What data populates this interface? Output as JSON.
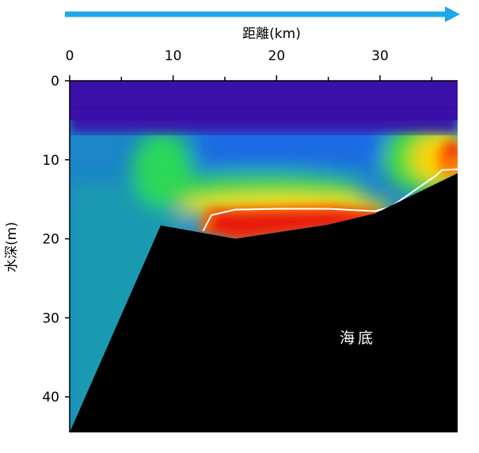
{
  "chart_data": {
    "type": "heatmap",
    "title": "",
    "xlabel": "距離(km)",
    "ylabel": "水深(m)",
    "xlim": [
      0,
      37.5
    ],
    "ylim": [
      44.5,
      0
    ],
    "x_ticks": [
      0,
      10,
      20,
      30
    ],
    "y_ticks": [
      0,
      10,
      20,
      30,
      40
    ],
    "grid": false,
    "direction_arrow": "right",
    "colors": {
      "arrow": "#1ea8ea",
      "surface": "#3a10a8",
      "seafloor_fill": "#000000",
      "contour": "#ffffff",
      "colormap": [
        "#3a10a8",
        "#1c6ae4",
        "#19a0a8",
        "#2ad85a",
        "#8fe81c",
        "#ffe400",
        "#ff6a00",
        "#e81c10"
      ]
    },
    "seafloor_label": "海底",
    "bathymetry": {
      "distance_km": [
        0,
        8.8,
        16,
        25,
        29.5,
        37.5
      ],
      "depth_m": [
        44.5,
        18.3,
        20,
        18.2,
        16.8,
        11.7
      ]
    },
    "high_value_contour": {
      "distance_km": [
        12.9,
        13.7,
        16,
        20,
        25,
        29.5,
        31,
        35.4,
        36,
        37.5
      ],
      "depth_m": [
        19,
        17,
        16.3,
        16.2,
        16.2,
        16.5,
        16,
        12,
        11.3,
        11.2
      ]
    }
  }
}
